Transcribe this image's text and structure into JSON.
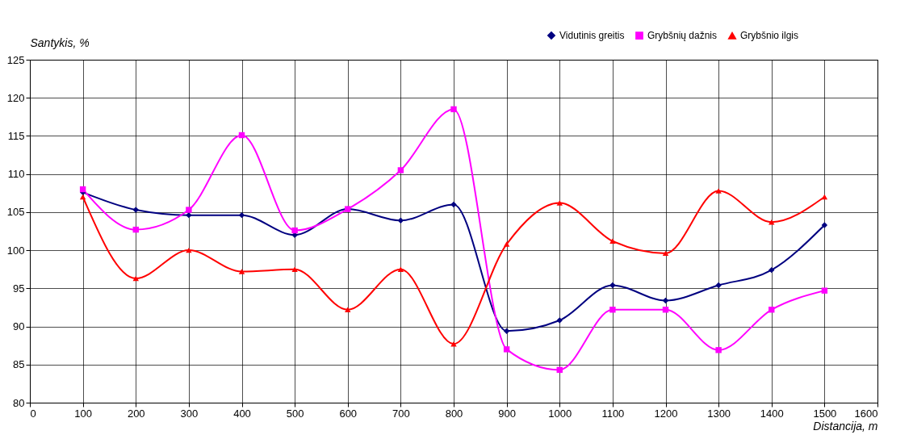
{
  "chart_data": {
    "type": "line",
    "xlabel": "Distancija, m",
    "ylabel": "Santykis, %",
    "x": [
      100,
      200,
      300,
      400,
      500,
      600,
      700,
      800,
      900,
      1000,
      1100,
      1200,
      1300,
      1400,
      1500
    ],
    "series": [
      {
        "name": "Vidutinis greitis",
        "color": "#000080",
        "marker": "diamond",
        "values": [
          107.6,
          105.3,
          104.6,
          104.6,
          102.0,
          105.4,
          103.9,
          106.0,
          89.4,
          90.8,
          95.4,
          93.4,
          95.4,
          97.4,
          103.3
        ]
      },
      {
        "name": "Grybšnių dažnis",
        "color": "#ff00ff",
        "marker": "square",
        "values": [
          108.0,
          102.7,
          105.3,
          115.1,
          102.6,
          105.4,
          110.5,
          118.5,
          87.0,
          84.3,
          92.2,
          92.2,
          86.9,
          92.2,
          94.7
        ]
      },
      {
        "name": "Grybšnio ilgis",
        "color": "#ff0000",
        "marker": "triangle",
        "values": [
          107.0,
          96.3,
          100.0,
          97.2,
          97.5,
          92.2,
          97.5,
          87.7,
          100.8,
          106.2,
          101.2,
          99.6,
          107.8,
          103.7,
          107.0
        ]
      }
    ],
    "xlim": [
      0,
      1600
    ],
    "xticks": [
      0,
      100,
      200,
      300,
      400,
      500,
      600,
      700,
      800,
      900,
      1000,
      1100,
      1200,
      1300,
      1400,
      1500,
      1600
    ],
    "ylim": [
      80,
      125
    ],
    "yticks": [
      80,
      85,
      90,
      95,
      100,
      105,
      110,
      115,
      120,
      125
    ],
    "grid": true,
    "legend": "top right"
  }
}
